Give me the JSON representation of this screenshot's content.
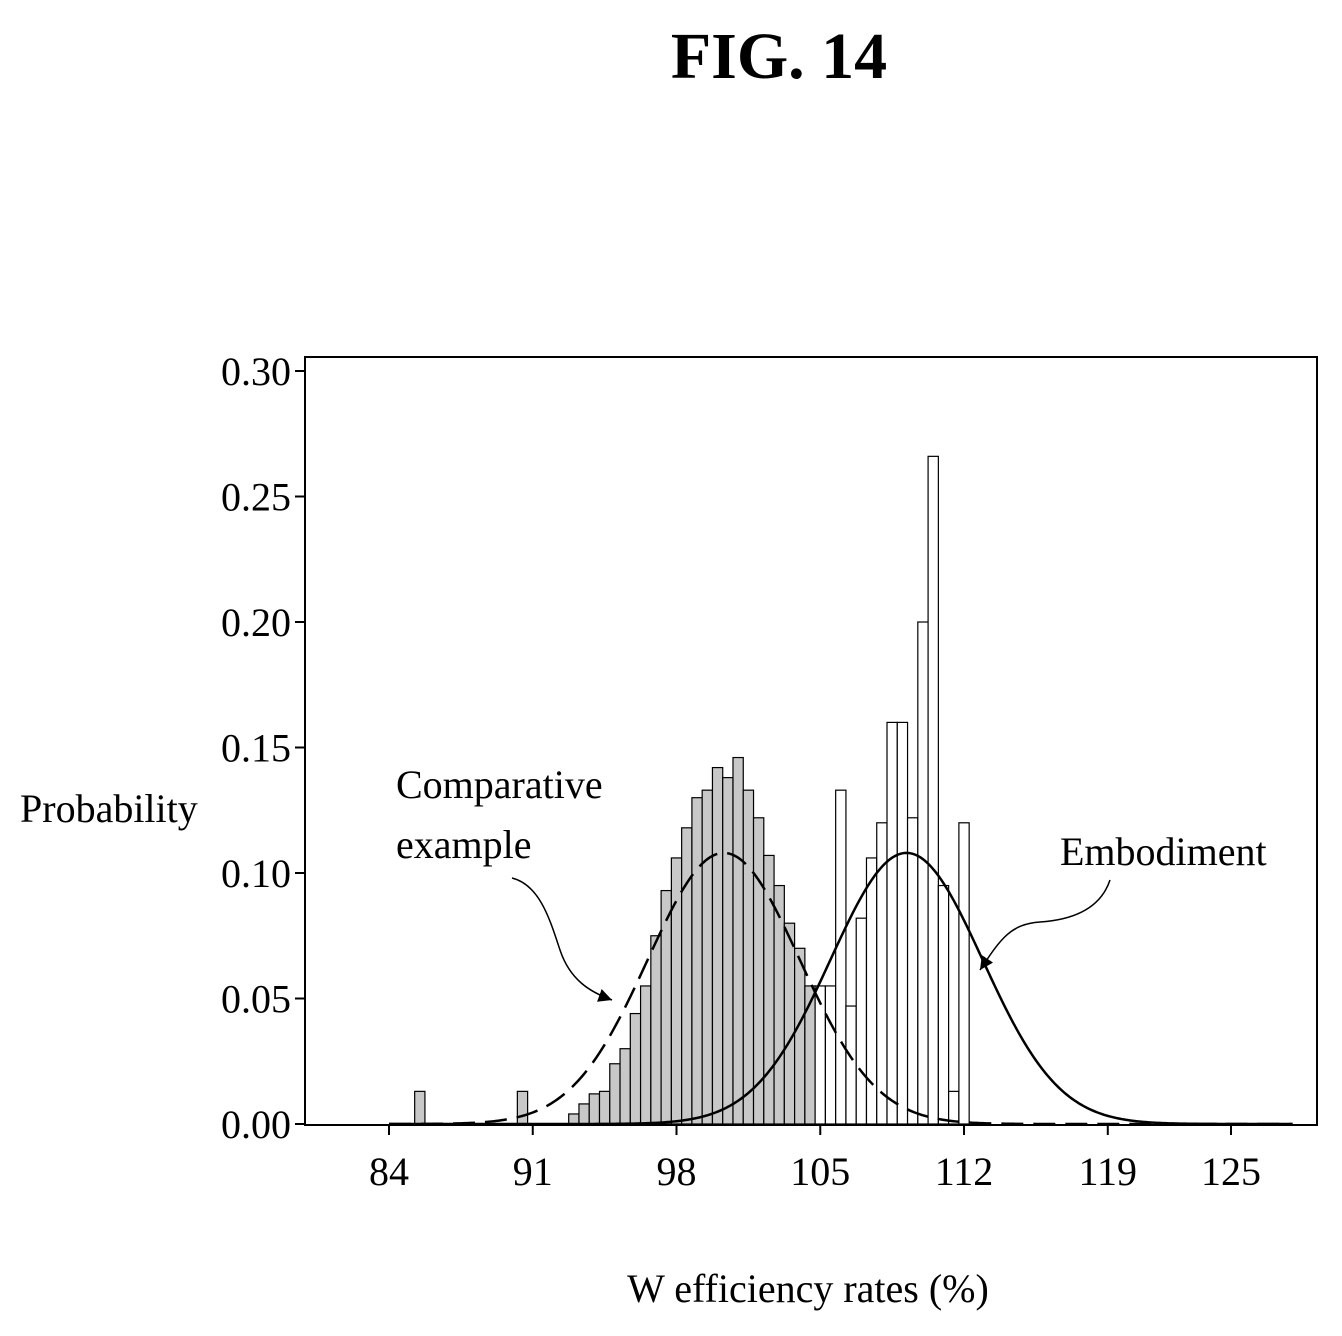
{
  "figure_label": "FIG. 14",
  "chart_data": {
    "type": "bar",
    "xlabel": "W efficiency rates (%)",
    "ylabel": "Probability",
    "xlim": [
      81,
      130
    ],
    "ylim": [
      0,
      0.3
    ],
    "x_ticks": [
      "84",
      "91",
      "98",
      "105",
      "112",
      "119",
      "125"
    ],
    "x_tick_values": [
      84,
      91,
      98,
      105,
      112,
      119,
      125
    ],
    "y_ticks": [
      "0.00",
      "0.05",
      "0.10",
      "0.15",
      "0.20",
      "0.25",
      "0.30"
    ],
    "y_tick_values": [
      0,
      0.05,
      0.1,
      0.15,
      0.2,
      0.25,
      0.3
    ],
    "bin_width": 0.5,
    "grid": false,
    "series": [
      {
        "name": "Comparative example",
        "fill": "#c8c8c8",
        "bins": [
          {
            "x": 85.5,
            "y": 0.013
          },
          {
            "x": 90.5,
            "y": 0.013
          },
          {
            "x": 93.0,
            "y": 0.004
          },
          {
            "x": 93.5,
            "y": 0.008
          },
          {
            "x": 94.0,
            "y": 0.012
          },
          {
            "x": 94.5,
            "y": 0.013
          },
          {
            "x": 95.0,
            "y": 0.024
          },
          {
            "x": 95.5,
            "y": 0.03
          },
          {
            "x": 96.0,
            "y": 0.044
          },
          {
            "x": 96.5,
            "y": 0.055
          },
          {
            "x": 97.0,
            "y": 0.075
          },
          {
            "x": 97.5,
            "y": 0.093
          },
          {
            "x": 98.0,
            "y": 0.106
          },
          {
            "x": 98.5,
            "y": 0.118
          },
          {
            "x": 99.0,
            "y": 0.13
          },
          {
            "x": 99.5,
            "y": 0.133
          },
          {
            "x": 100.0,
            "y": 0.142
          },
          {
            "x": 100.5,
            "y": 0.138
          },
          {
            "x": 101.0,
            "y": 0.146
          },
          {
            "x": 101.5,
            "y": 0.133
          },
          {
            "x": 102.0,
            "y": 0.122
          },
          {
            "x": 102.5,
            "y": 0.107
          },
          {
            "x": 103.0,
            "y": 0.095
          },
          {
            "x": 103.5,
            "y": 0.08
          },
          {
            "x": 104.0,
            "y": 0.07
          },
          {
            "x": 104.5,
            "y": 0.055
          },
          {
            "x": 105.0,
            "y": 0.04
          },
          {
            "x": 105.5,
            "y": 0.02
          },
          {
            "x": 106.0,
            "y": 0.012
          },
          {
            "x": 106.5,
            "y": 0.008
          },
          {
            "x": 107.0,
            "y": 0.007
          },
          {
            "x": 107.5,
            "y": 0.004
          },
          {
            "x": 108.0,
            "y": 0.003
          }
        ]
      },
      {
        "name": "Embodiment",
        "fill": "#ffffff",
        "bins": [
          {
            "x": 105.0,
            "y": 0.055
          },
          {
            "x": 105.5,
            "y": 0.055
          },
          {
            "x": 106.0,
            "y": 0.133
          },
          {
            "x": 106.5,
            "y": 0.047
          },
          {
            "x": 107.0,
            "y": 0.082
          },
          {
            "x": 107.5,
            "y": 0.106
          },
          {
            "x": 108.0,
            "y": 0.12
          },
          {
            "x": 108.5,
            "y": 0.16
          },
          {
            "x": 109.0,
            "y": 0.16
          },
          {
            "x": 109.5,
            "y": 0.122
          },
          {
            "x": 110.0,
            "y": 0.2
          },
          {
            "x": 110.5,
            "y": 0.266
          },
          {
            "x": 111.0,
            "y": 0.095
          },
          {
            "x": 111.5,
            "y": 0.013
          },
          {
            "x": 112.0,
            "y": 0.12
          }
        ]
      }
    ],
    "fit_curves": [
      {
        "name": "Comparative example",
        "style": "dashed",
        "mean": 100.3,
        "sd": 3.7,
        "peak": 0.108
      },
      {
        "name": "Embodiment",
        "style": "solid",
        "mean": 109.2,
        "sd": 3.7,
        "peak": 0.108
      }
    ],
    "annotations": [
      {
        "lines": [
          "Comparative",
          "example"
        ],
        "points_to": "Comparative example"
      },
      {
        "lines": [
          "Embodiment"
        ],
        "points_to": "Embodiment"
      }
    ]
  }
}
